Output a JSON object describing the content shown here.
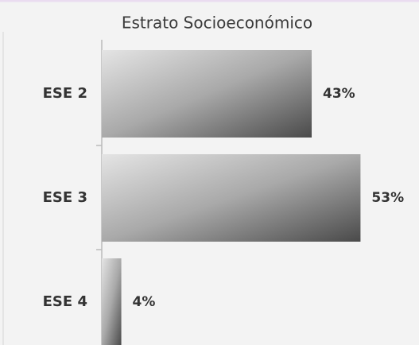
{
  "chart_data": {
    "type": "bar",
    "orientation": "horizontal",
    "title": "Estrato Socioeconómico",
    "categories": [
      "ESE 2",
      "ESE 3",
      "ESE 4"
    ],
    "values": [
      43,
      53,
      4
    ],
    "value_labels": [
      "43%",
      "53%",
      "4%"
    ]
  }
}
